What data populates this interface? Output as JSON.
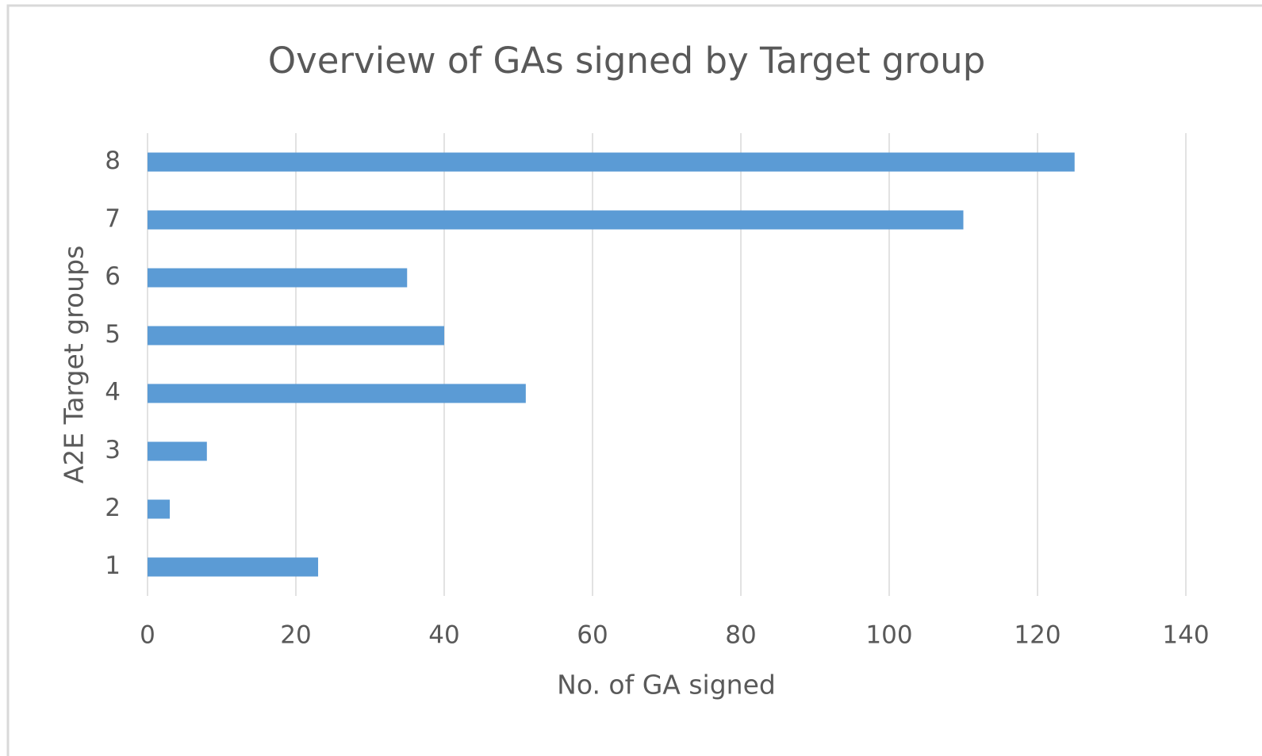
{
  "chart_data": {
    "type": "barh",
    "title": "Overview of GAs signed by Target group",
    "x_label": "No. of GA signed",
    "y_label": "A2E Target groups",
    "categories": [
      "1",
      "2",
      "3",
      "4",
      "5",
      "6",
      "7",
      "8"
    ],
    "values": [
      23,
      3,
      8,
      51,
      40,
      35,
      110,
      125
    ],
    "color": "#5b9bd5",
    "xlim": [
      0,
      140
    ],
    "xticks": [
      0,
      20,
      40,
      60,
      80,
      100,
      120,
      140
    ],
    "grid": true
  }
}
